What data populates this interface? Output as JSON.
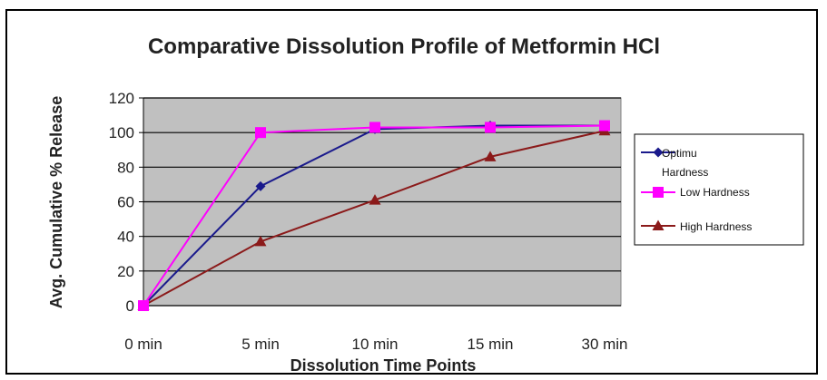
{
  "chart_data": {
    "type": "line",
    "title": "Comparative Dissolution Profile of Metformin HCl",
    "xlabel": "Dissolution Time Points",
    "ylabel": "Avg. Cumulative % Release",
    "categories": [
      "0 min",
      "5 min",
      "10 min",
      "15 min",
      "30 min"
    ],
    "ylim": [
      0,
      120
    ],
    "yticks": [
      0,
      20,
      40,
      60,
      80,
      100,
      120
    ],
    "grid": true,
    "plot_background": "#c0c0c0",
    "legend_position": "right",
    "series": [
      {
        "name": "Optimu Hardness",
        "values": [
          0,
          69,
          102,
          104,
          104
        ],
        "color": "#1a1a8c",
        "marker": "diamond"
      },
      {
        "name": "Low Hardness",
        "values": [
          0,
          100,
          103,
          103,
          104
        ],
        "color": "#ff00ff",
        "marker": "square"
      },
      {
        "name": "High Hardness",
        "values": [
          0,
          37,
          61,
          86,
          101
        ],
        "color": "#8b1a1a",
        "marker": "triangle"
      }
    ]
  }
}
